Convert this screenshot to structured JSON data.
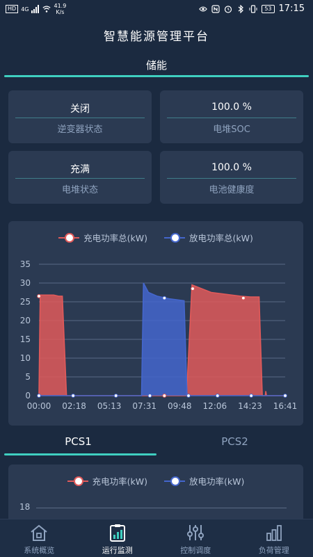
{
  "status_bar": {
    "network": "HD",
    "signal": "4G",
    "speed_value": "41.9",
    "speed_unit": "K/s",
    "battery": "53",
    "time": "17:15"
  },
  "app": {
    "title": "智慧能源管理平台"
  },
  "section": {
    "title": "储能"
  },
  "cards": [
    {
      "value": "关闭",
      "label": "逆变器状态"
    },
    {
      "value": "100.0 %",
      "label": "电堆SOC"
    },
    {
      "value": "充满",
      "label": "电堆状态"
    },
    {
      "value": "100.0 %",
      "label": "电池健康度"
    }
  ],
  "chart1": {
    "legend": [
      "充电功率总(kW)",
      "放电功率总(kW)"
    ]
  },
  "chart2": {
    "legend": [
      "充电功率(kW)",
      "放电功率(kW)"
    ],
    "visible_tick": "18"
  },
  "pcs_tabs": [
    "PCS1",
    "PCS2"
  ],
  "nav": [
    "系统概览",
    "运行监测",
    "控制调度",
    "负荷管理"
  ],
  "colors": {
    "charge": "#e05a5a",
    "discharge": "#4466cc",
    "accent": "#3fcfc0",
    "background": "#1b2a40",
    "panel": "#2b3a52"
  },
  "chart_data": {
    "type": "area",
    "x_ticks": [
      "00:00",
      "02:18",
      "05:13",
      "07:31",
      "09:48",
      "12:06",
      "14:23",
      "16:41"
    ],
    "ylim": [
      0,
      35
    ],
    "y_ticks": [
      0,
      5,
      10,
      15,
      20,
      25,
      30,
      35
    ],
    "grid": true,
    "legend_position": "top",
    "x_domain_minutes": [
      0,
      1001
    ],
    "series": [
      {
        "name": "充电功率总(kW)",
        "color": "#e05a5a",
        "points": [
          [
            0,
            0
          ],
          [
            5,
            26.8
          ],
          [
            60,
            26.8
          ],
          [
            80,
            26.5
          ],
          [
            95,
            26.5
          ],
          [
            112,
            0
          ],
          [
            600,
            0
          ],
          [
            622,
            29.5
          ],
          [
            700,
            27.5
          ],
          [
            820,
            26.5
          ],
          [
            860,
            26.3
          ],
          [
            895,
            26.3
          ],
          [
            908,
            0
          ],
          [
            920,
            0
          ],
          [
            922,
            1.2
          ],
          [
            925,
            0
          ],
          [
            1001,
            0
          ]
        ]
      },
      {
        "name": "放电功率总(kW)",
        "color": "#4466cc",
        "points": [
          [
            0,
            0
          ],
          [
            417,
            0
          ],
          [
            425,
            30
          ],
          [
            445,
            27.5
          ],
          [
            480,
            26.5
          ],
          [
            530,
            25.8
          ],
          [
            590,
            25.3
          ],
          [
            602,
            0
          ],
          [
            1001,
            0
          ]
        ]
      }
    ],
    "markers": [
      {
        "x": 0,
        "y": 26.5,
        "series": "充电功率总(kW)"
      },
      {
        "x": 625,
        "y": 28.5,
        "series": "充电功率总(kW)"
      },
      {
        "x": 831,
        "y": 26,
        "series": "充电功率总(kW)"
      },
      {
        "x": 0,
        "y": 0,
        "series": "放电功率总(kW)"
      },
      {
        "x": 139,
        "y": 0,
        "series": "放电功率总(kW)"
      },
      {
        "x": 313,
        "y": 0,
        "series": "放电功率总(kW)"
      },
      {
        "x": 451,
        "y": 0,
        "series": "放电功率总(kW)"
      },
      {
        "x": 510,
        "y": 26,
        "series": "放电功率总(kW)"
      },
      {
        "x": 608,
        "y": 0,
        "series": "放电功率总(kW)"
      },
      {
        "x": 726,
        "y": 0,
        "series": "放电功率总(kW)"
      },
      {
        "x": 863,
        "y": 0,
        "series": "放电功率总(kW)"
      },
      {
        "x": 1001,
        "y": 0,
        "series": "放电功率总(kW)"
      },
      {
        "x": 510,
        "y": 0,
        "series": "充电功率总(kW)"
      }
    ]
  }
}
